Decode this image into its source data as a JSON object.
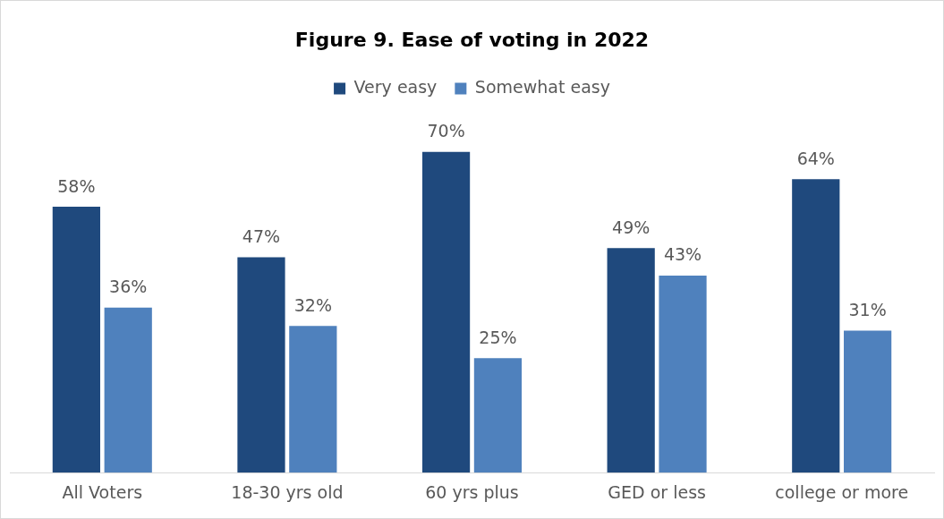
{
  "chart_data": {
    "type": "bar",
    "title": "Figure 9. Ease of voting in 2022",
    "categories": [
      "All Voters",
      "18-30 yrs old",
      "60 yrs plus",
      "GED or less",
      "college or more"
    ],
    "series": [
      {
        "name": "Very easy",
        "color": "#1f497d",
        "values": [
          58,
          47,
          70,
          49,
          64
        ],
        "value_labels": [
          "58%",
          "47%",
          "70%",
          "49%",
          "64%"
        ]
      },
      {
        "name": "Somewhat easy",
        "color": "#4f81bd",
        "values": [
          36,
          32,
          25,
          43,
          31
        ],
        "value_labels": [
          "36%",
          "32%",
          "25%",
          "43%",
          "31%"
        ]
      }
    ],
    "legend": "top",
    "grid": false,
    "tick_labels": "x"
  }
}
